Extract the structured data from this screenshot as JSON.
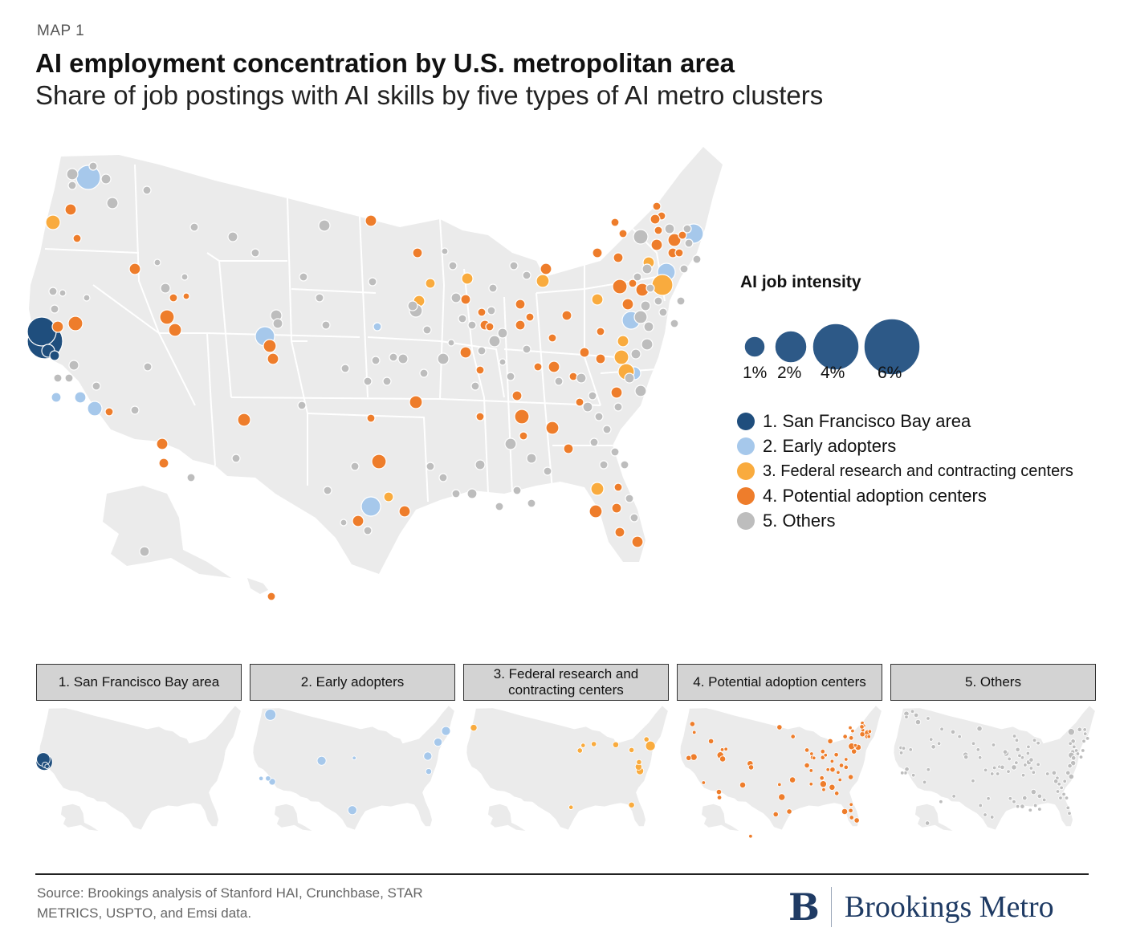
{
  "header": {
    "kicker": "MAP 1",
    "title": "AI employment concentration by U.S. metropolitan area",
    "subtitle": "Share of job postings with AI skills by five types of AI metro clusters"
  },
  "legend": {
    "intensity_title": "AI job intensity",
    "sizes": [
      {
        "label": "1%",
        "value": 1
      },
      {
        "label": "2%",
        "value": 2
      },
      {
        "label": "4%",
        "value": 4
      },
      {
        "label": "6%",
        "value": 6
      }
    ],
    "categories": [
      {
        "label": "1. San Francisco Bay area",
        "color": "#1f4e7d"
      },
      {
        "label": "2. Early adopters",
        "color": "#a6c8eb"
      },
      {
        "label": "3. Federal research and contracting centers",
        "color": "#f9ab3e"
      },
      {
        "label": "4. Potential adoption centers",
        "color": "#ee7d2b"
      },
      {
        "label": "5. Others",
        "color": "#bdbdbd"
      }
    ]
  },
  "panels": [
    {
      "title": "1. San Francisco Bay area"
    },
    {
      "title": "2. Early adopters"
    },
    {
      "title": "3. Federal research and contracting centers"
    },
    {
      "title": "4. Potential adoption centers"
    },
    {
      "title": "5. Others"
    }
  ],
  "footer": {
    "source": "Source: Brookings analysis of Stanford HAI, Crunchbase, STAR METRICS, USPTO, and Emsi data.",
    "brand_initial": "B",
    "brand_name": "Brookings Metro"
  },
  "colors": {
    "land": "#ebebeb",
    "borders": "#ffffff",
    "sf_bay": "#1f4e7d",
    "early": "#a6c8eb",
    "federal": "#f9ab3e",
    "potential": "#ee7d2b",
    "others": "#bdbdbd"
  }
}
